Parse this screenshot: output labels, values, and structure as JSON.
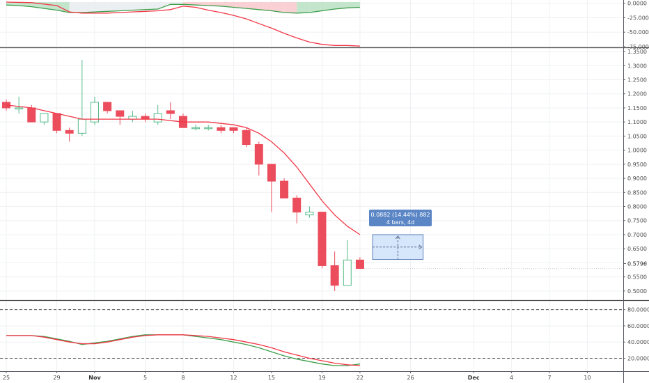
{
  "colors": {
    "up": "#53b987",
    "down": "#eb4d5c",
    "ma": "#f23645",
    "signal_green": "#3d9e4a",
    "grid": "#eef0f3",
    "axis": "#5d606b",
    "measure_fill": "#d6e6fb",
    "measure_border": "#5b7fb8",
    "tooltip_bg": "#5b86c5"
  },
  "chart_data": [
    {
      "type": "area",
      "name": "top-indicator",
      "y_ticks": [
        "0.0000",
        "-25.0000",
        "-50.0000",
        "-75.0000"
      ],
      "y_tick_values": [
        0,
        -25,
        -50,
        -75
      ],
      "ylim": [
        -75,
        2
      ],
      "red_line": [
        [
          0,
          2
        ],
        [
          2,
          1
        ],
        [
          4,
          -4
        ],
        [
          5,
          -15
        ],
        [
          6,
          -17
        ],
        [
          7,
          -17
        ],
        [
          8,
          -17
        ],
        [
          9,
          -16
        ],
        [
          10,
          -15
        ],
        [
          11,
          -14
        ],
        [
          12,
          -13
        ],
        [
          13,
          -11
        ],
        [
          14,
          -5
        ],
        [
          15,
          -7
        ],
        [
          16,
          -12
        ],
        [
          17,
          -16
        ],
        [
          18,
          -21
        ],
        [
          19,
          -27
        ],
        [
          20,
          -35
        ],
        [
          21,
          -43
        ],
        [
          22,
          -52
        ],
        [
          23,
          -60
        ],
        [
          24,
          -67
        ],
        [
          25,
          -71
        ],
        [
          26,
          -73
        ],
        [
          27,
          -73
        ],
        [
          28,
          -74
        ]
      ],
      "green_line": [
        [
          0,
          -3
        ],
        [
          1,
          -4
        ],
        [
          2,
          -6
        ],
        [
          3,
          -9
        ],
        [
          4,
          -12
        ],
        [
          5,
          -16
        ],
        [
          6,
          -16
        ],
        [
          7,
          -15
        ],
        [
          8,
          -14
        ],
        [
          9,
          -13
        ],
        [
          10,
          -12
        ],
        [
          11,
          -11
        ],
        [
          12,
          -10
        ],
        [
          13,
          -2
        ],
        [
          14,
          -2
        ],
        [
          15,
          -3
        ],
        [
          16,
          -4
        ],
        [
          17,
          -5
        ],
        [
          18,
          -7
        ],
        [
          19,
          -9
        ],
        [
          20,
          -11
        ],
        [
          21,
          -13
        ],
        [
          22,
          -16
        ],
        [
          23,
          -17
        ],
        [
          24,
          -16
        ],
        [
          25,
          -13
        ],
        [
          26,
          -10
        ],
        [
          27,
          -8
        ],
        [
          28,
          -7
        ]
      ]
    },
    {
      "type": "candlestick",
      "name": "price",
      "y_ticks": [
        "1.3500",
        "1.3000",
        "1.2500",
        "1.2000",
        "1.1500",
        "1.1000",
        "1.0500",
        "1.0000",
        "0.9500",
        "0.9000",
        "0.8500",
        "0.8000",
        "0.7500",
        "0.7000",
        "0.6500",
        "0.6000",
        "0.5500",
        "0.5000"
      ],
      "y_tick_values": [
        1.35,
        1.3,
        1.25,
        1.2,
        1.15,
        1.1,
        1.05,
        1.0,
        0.95,
        0.9,
        0.85,
        0.8,
        0.75,
        0.7,
        0.65,
        0.6,
        0.55,
        0.5
      ],
      "ylim": [
        0.47,
        1.36
      ],
      "candles": [
        {
          "i": 0,
          "o": 1.17,
          "h": 1.18,
          "l": 1.14,
          "c": 1.15
        },
        {
          "i": 1,
          "o": 1.15,
          "h": 1.19,
          "l": 1.13,
          "c": 1.15
        },
        {
          "i": 2,
          "o": 1.15,
          "h": 1.16,
          "l": 1.1,
          "c": 1.1
        },
        {
          "i": 3,
          "o": 1.1,
          "h": 1.13,
          "l": 1.09,
          "c": 1.13
        },
        {
          "i": 4,
          "o": 1.13,
          "h": 1.13,
          "l": 1.06,
          "c": 1.07
        },
        {
          "i": 5,
          "o": 1.07,
          "h": 1.08,
          "l": 1.03,
          "c": 1.06
        },
        {
          "i": 6,
          "o": 1.06,
          "h": 1.32,
          "l": 1.05,
          "c": 1.11
        },
        {
          "i": 7,
          "o": 1.1,
          "h": 1.19,
          "l": 1.09,
          "c": 1.17
        },
        {
          "i": 8,
          "o": 1.17,
          "h": 1.17,
          "l": 1.13,
          "c": 1.14
        },
        {
          "i": 9,
          "o": 1.14,
          "h": 1.14,
          "l": 1.09,
          "c": 1.12
        },
        {
          "i": 10,
          "o": 1.11,
          "h": 1.14,
          "l": 1.1,
          "c": 1.12
        },
        {
          "i": 11,
          "o": 1.12,
          "h": 1.13,
          "l": 1.1,
          "c": 1.11
        },
        {
          "i": 12,
          "o": 1.1,
          "h": 1.16,
          "l": 1.09,
          "c": 1.13
        },
        {
          "i": 13,
          "o": 1.14,
          "h": 1.17,
          "l": 1.11,
          "c": 1.13
        },
        {
          "i": 14,
          "o": 1.12,
          "h": 1.13,
          "l": 1.08,
          "c": 1.08
        },
        {
          "i": 15,
          "o": 1.08,
          "h": 1.09,
          "l": 1.07,
          "c": 1.08
        },
        {
          "i": 16,
          "o": 1.08,
          "h": 1.09,
          "l": 1.07,
          "c": 1.08
        },
        {
          "i": 17,
          "o": 1.08,
          "h": 1.09,
          "l": 1.06,
          "c": 1.07
        },
        {
          "i": 18,
          "o": 1.08,
          "h": 1.08,
          "l": 1.06,
          "c": 1.07
        },
        {
          "i": 19,
          "o": 1.07,
          "h": 1.08,
          "l": 1.01,
          "c": 1.02
        },
        {
          "i": 20,
          "o": 1.02,
          "h": 1.03,
          "l": 0.91,
          "c": 0.95
        },
        {
          "i": 21,
          "o": 0.95,
          "h": 0.95,
          "l": 0.78,
          "c": 0.89
        },
        {
          "i": 22,
          "o": 0.89,
          "h": 0.9,
          "l": 0.83,
          "c": 0.83
        },
        {
          "i": 23,
          "o": 0.83,
          "h": 0.84,
          "l": 0.74,
          "c": 0.78
        },
        {
          "i": 24,
          "o": 0.77,
          "h": 0.8,
          "l": 0.76,
          "c": 0.78
        },
        {
          "i": 25,
          "o": 0.78,
          "h": 0.78,
          "l": 0.58,
          "c": 0.59
        },
        {
          "i": 26,
          "o": 0.59,
          "h": 0.64,
          "l": 0.5,
          "c": 0.52
        },
        {
          "i": 27,
          "o": 0.52,
          "h": 0.68,
          "l": 0.52,
          "c": 0.61
        },
        {
          "i": 28,
          "o": 0.61,
          "h": 0.62,
          "l": 0.58,
          "c": 0.58
        }
      ],
      "moving_average": [
        [
          0,
          1.16
        ],
        [
          2,
          1.15
        ],
        [
          4,
          1.13
        ],
        [
          6,
          1.11
        ],
        [
          8,
          1.11
        ],
        [
          10,
          1.11
        ],
        [
          12,
          1.11
        ],
        [
          14,
          1.1
        ],
        [
          16,
          1.1
        ],
        [
          18,
          1.09
        ],
        [
          19,
          1.08
        ],
        [
          20,
          1.06
        ],
        [
          21,
          1.03
        ],
        [
          22,
          0.99
        ],
        [
          23,
          0.94
        ],
        [
          24,
          0.88
        ],
        [
          25,
          0.82
        ],
        [
          26,
          0.77
        ],
        [
          27,
          0.73
        ],
        [
          28,
          0.7
        ]
      ],
      "last_price_tag": "0.5796",
      "last_price": 0.5796,
      "measure": {
        "x_start": 29,
        "x_end": 33,
        "y_low": 0.612,
        "y_high": 0.7
      },
      "tooltip_line1": "0.0882 (14.44%) 882",
      "tooltip_line2": "4 bars, 4d"
    },
    {
      "type": "line",
      "name": "bottom-oscillator",
      "y_ticks": [
        "80.0000",
        "60.0000",
        "40.0000",
        "20.0000"
      ],
      "y_tick_values": [
        80,
        60,
        40,
        20
      ],
      "ylim": [
        5,
        90
      ],
      "dashed_levels": [
        80,
        20
      ],
      "red_line": [
        [
          0,
          48
        ],
        [
          2,
          48
        ],
        [
          3,
          46
        ],
        [
          4,
          43
        ],
        [
          5,
          40
        ],
        [
          6,
          38
        ],
        [
          7,
          38
        ],
        [
          8,
          40
        ],
        [
          9,
          43
        ],
        [
          10,
          46
        ],
        [
          11,
          48
        ],
        [
          12,
          49
        ],
        [
          13,
          49
        ],
        [
          14,
          49
        ],
        [
          15,
          48
        ],
        [
          16,
          47
        ],
        [
          17,
          45
        ],
        [
          18,
          43
        ],
        [
          19,
          40
        ],
        [
          20,
          37
        ],
        [
          21,
          33
        ],
        [
          22,
          28
        ],
        [
          23,
          24
        ],
        [
          24,
          20
        ],
        [
          25,
          17
        ],
        [
          26,
          14
        ],
        [
          27,
          12
        ],
        [
          28,
          11
        ]
      ],
      "green_line": [
        [
          0,
          48
        ],
        [
          2,
          48
        ],
        [
          3,
          47
        ],
        [
          4,
          44
        ],
        [
          5,
          41
        ],
        [
          6,
          37
        ],
        [
          7,
          39
        ],
        [
          8,
          41
        ],
        [
          9,
          44
        ],
        [
          10,
          47
        ],
        [
          11,
          49
        ],
        [
          12,
          49
        ],
        [
          13,
          49
        ],
        [
          14,
          49
        ],
        [
          15,
          47
        ],
        [
          16,
          45
        ],
        [
          17,
          43
        ],
        [
          18,
          40
        ],
        [
          19,
          37
        ],
        [
          20,
          33
        ],
        [
          21,
          28
        ],
        [
          22,
          23
        ],
        [
          23,
          19
        ],
        [
          24,
          16
        ],
        [
          25,
          13
        ],
        [
          26,
          11
        ],
        [
          27,
          11
        ],
        [
          28,
          13
        ]
      ]
    }
  ],
  "x_axis": {
    "labels": [
      {
        "label": "25",
        "x": 0
      },
      {
        "label": "29",
        "x": 4
      },
      {
        "label": "Nov",
        "x": 7,
        "bold": true
      },
      {
        "label": "5",
        "x": 11
      },
      {
        "label": "8",
        "x": 14
      },
      {
        "label": "12",
        "x": 18
      },
      {
        "label": "15",
        "x": 21
      },
      {
        "label": "19",
        "x": 25
      },
      {
        "label": "22",
        "x": 28
      },
      {
        "label": "26",
        "x": 32
      },
      {
        "label": "Dec",
        "x": 37,
        "bold": true
      },
      {
        "label": "4",
        "x": 40
      },
      {
        "label": "7",
        "x": 43
      },
      {
        "label": "10",
        "x": 46
      }
    ]
  }
}
